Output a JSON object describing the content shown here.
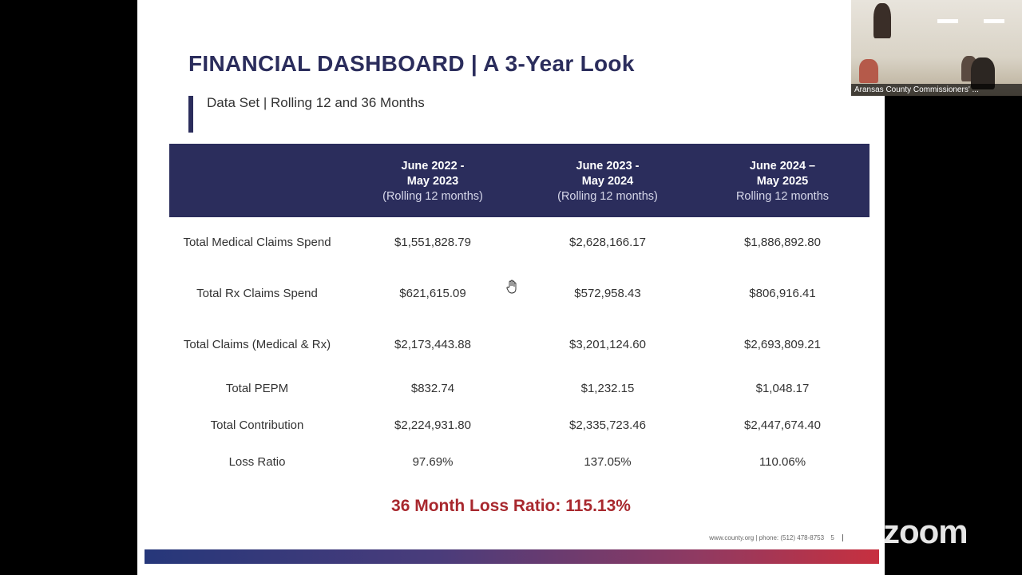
{
  "slide": {
    "title": "FINANCIAL DASHBOARD | A 3-Year Look",
    "subtitle": "Data Set | Rolling 12 and 36 Months",
    "columns": [
      {
        "line1": "June 2022 -",
        "line2": "May 2023",
        "line3": "(Rolling 12 months)"
      },
      {
        "line1": "June 2023 -",
        "line2": "May 2024",
        "line3": "(Rolling 12 months)"
      },
      {
        "line1": "June 2024 –",
        "line2": "May 2025",
        "line3": "Rolling 12 months"
      }
    ],
    "rows": [
      {
        "label": "Total Medical Claims Spend",
        "values": [
          "$1,551,828.79",
          "$2,628,166.17",
          "$1,886,892.80"
        ]
      },
      {
        "label": "Total Rx Claims Spend",
        "values": [
          "$621,615.09",
          "$572,958.43",
          "$806,916.41"
        ]
      },
      {
        "label": "Total Claims (Medical & Rx)",
        "values": [
          "$2,173,443.88",
          "$3,201,124.60",
          "$2,693,809.21"
        ]
      },
      {
        "label": "Total PEPM",
        "values": [
          "$832.74",
          "$1,232.15",
          "$1,048.17"
        ]
      },
      {
        "label": "Total Contribution",
        "values": [
          "$2,224,931.80",
          "$2,335,723.46",
          "$2,447,674.40"
        ]
      },
      {
        "label": "Loss Ratio",
        "values": [
          "97.69%",
          "137.05%",
          "110.06%"
        ]
      }
    ],
    "summary": "36 Month Loss Ratio: 115.13%",
    "footer": "www.county.org | phone: (512) 478-8753",
    "page_number": "5"
  },
  "video": {
    "participant_name": "Aransas County Commissioners' ..."
  },
  "watermark": "zoom",
  "colors": {
    "navy": "#2b2d5c",
    "accent_red": "#a8282e"
  }
}
